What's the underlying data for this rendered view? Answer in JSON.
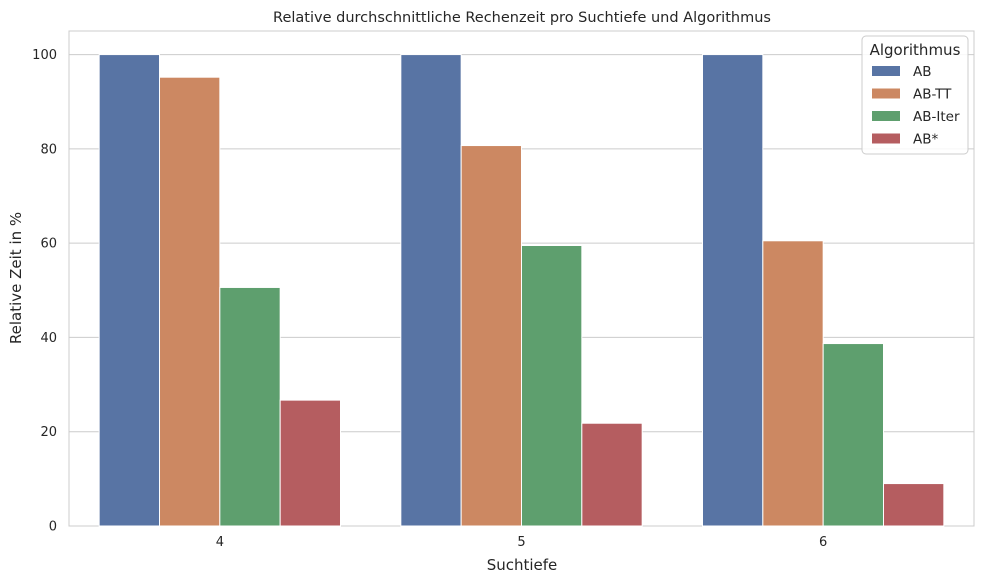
{
  "chart_data": {
    "type": "bar",
    "title": "Relative durchschnittliche Rechenzeit pro Suchtiefe und Algorithmus",
    "xlabel": "Suchtiefe",
    "ylabel": "Relative Zeit in %",
    "categories": [
      "4",
      "5",
      "6"
    ],
    "ylim": [
      0,
      105
    ],
    "yticks": [
      0,
      20,
      40,
      60,
      80,
      100
    ],
    "grid": "y",
    "legend": {
      "title": "Algorithmus",
      "placement": "top-right"
    },
    "series": [
      {
        "name": "AB",
        "color": "#5874a4",
        "values": [
          100,
          100,
          100
        ]
      },
      {
        "name": "AB-TT",
        "color": "#cc8862",
        "values": [
          95.2,
          80.7,
          60.5
        ]
      },
      {
        "name": "AB-Iter",
        "color": "#5e9f6e",
        "values": [
          50.6,
          59.5,
          38.7
        ]
      },
      {
        "name": "AB*",
        "color": "#b55d60",
        "values": [
          26.7,
          21.8,
          9.0
        ]
      }
    ]
  }
}
